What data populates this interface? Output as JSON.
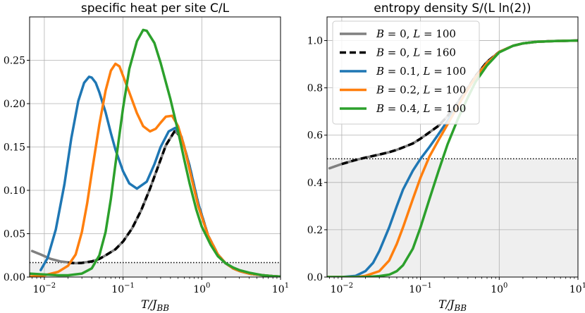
{
  "chart_data": [
    {
      "type": "line",
      "title": "specific heat per site C/L",
      "xlabel": "T/J_BB",
      "ylabel": "",
      "xscale": "log",
      "xlim": [
        0.0065,
        10
      ],
      "ylim": [
        0,
        0.3
      ],
      "grid": true,
      "x_ticks": [
        {
          "value": 0.01,
          "label": "10^-2"
        },
        {
          "value": 0.1,
          "label": "10^-1"
        },
        {
          "value": 1,
          "label": "10^0"
        },
        {
          "value": 10,
          "label": "10^1"
        }
      ],
      "y_ticks": [
        {
          "value": 0.0,
          "label": "0.00"
        },
        {
          "value": 0.05,
          "label": "0.05"
        },
        {
          "value": 0.1,
          "label": "0.10"
        },
        {
          "value": 0.15,
          "label": "0.15"
        },
        {
          "value": 0.2,
          "label": "0.20"
        },
        {
          "value": 0.25,
          "label": "0.25"
        }
      ],
      "reference_line": {
        "y": 0.0167,
        "style": "dotted",
        "shaded_below": true
      },
      "series": [
        {
          "name": "B = 0, L = 100",
          "color": "#808080",
          "dash": "solid",
          "x": [
            0.007,
            0.009,
            0.012,
            0.016,
            0.02,
            0.025,
            0.03,
            0.04,
            0.05,
            0.06,
            0.08,
            0.1,
            0.13,
            0.17,
            0.22,
            0.28,
            0.35,
            0.45,
            0.55,
            0.7,
            0.9,
            1.2,
            1.6,
            2.0,
            2.5,
            3.0,
            4.0,
            6.0,
            8.0,
            10.0
          ],
          "y": [
            0.03,
            0.026,
            0.021,
            0.018,
            0.017,
            0.016,
            0.0165,
            0.018,
            0.021,
            0.025,
            0.032,
            0.041,
            0.056,
            0.077,
            0.102,
            0.128,
            0.152,
            0.168,
            0.162,
            0.128,
            0.085,
            0.048,
            0.026,
            0.016,
            0.01,
            0.007,
            0.004,
            0.002,
            0.001,
            0.0005
          ]
        },
        {
          "name": "B = 0, L = 160",
          "color": "#000000",
          "dash": "dashed",
          "x": [
            0.02,
            0.025,
            0.03,
            0.04,
            0.05,
            0.06,
            0.08,
            0.1,
            0.13,
            0.17,
            0.22,
            0.28,
            0.35,
            0.45,
            0.55,
            0.7,
            0.9,
            1.2,
            1.6,
            2.0,
            2.5,
            3.0,
            4.0,
            6.0,
            8.0,
            10.0
          ],
          "y": [
            0.0165,
            0.016,
            0.0163,
            0.018,
            0.021,
            0.025,
            0.032,
            0.041,
            0.056,
            0.077,
            0.102,
            0.128,
            0.152,
            0.168,
            0.162,
            0.128,
            0.085,
            0.048,
            0.026,
            0.016,
            0.01,
            0.007,
            0.004,
            0.002,
            0.001,
            0.0005
          ]
        },
        {
          "name": "B = 0.1, L = 100",
          "color": "#1f77b4",
          "dash": "solid",
          "x": [
            0.009,
            0.011,
            0.014,
            0.018,
            0.022,
            0.027,
            0.032,
            0.037,
            0.04,
            0.045,
            0.05,
            0.06,
            0.07,
            0.08,
            0.1,
            0.12,
            0.15,
            0.2,
            0.25,
            0.3,
            0.38,
            0.46,
            0.55,
            0.7,
            0.9,
            1.2,
            1.6,
            2.0,
            2.5,
            3.0,
            4.0,
            6.0,
            8.0,
            10.0
          ],
          "y": [
            0.008,
            0.022,
            0.055,
            0.107,
            0.16,
            0.203,
            0.224,
            0.231,
            0.23,
            0.224,
            0.213,
            0.19,
            0.166,
            0.147,
            0.122,
            0.108,
            0.102,
            0.11,
            0.13,
            0.15,
            0.168,
            0.172,
            0.162,
            0.128,
            0.085,
            0.048,
            0.026,
            0.016,
            0.01,
            0.007,
            0.004,
            0.002,
            0.001,
            0.0005
          ]
        },
        {
          "name": "B = 0.2, L = 100",
          "color": "#ff7f0e",
          "dash": "solid",
          "x": [
            0.0065,
            0.01,
            0.015,
            0.02,
            0.025,
            0.03,
            0.035,
            0.04,
            0.05,
            0.06,
            0.07,
            0.08,
            0.09,
            0.1,
            0.12,
            0.15,
            0.18,
            0.22,
            0.26,
            0.3,
            0.35,
            0.42,
            0.5,
            0.6,
            0.75,
            0.9,
            1.2,
            1.6,
            2.0,
            2.5,
            3.0,
            4.0,
            6.0,
            8.0,
            10.0
          ],
          "y": [
            0.0005,
            0.002,
            0.006,
            0.013,
            0.026,
            0.052,
            0.085,
            0.12,
            0.176,
            0.215,
            0.238,
            0.246,
            0.243,
            0.232,
            0.213,
            0.189,
            0.174,
            0.168,
            0.171,
            0.178,
            0.185,
            0.186,
            0.174,
            0.15,
            0.112,
            0.082,
            0.048,
            0.026,
            0.016,
            0.01,
            0.007,
            0.004,
            0.002,
            0.001,
            0.0005
          ]
        },
        {
          "name": "B = 0.4, L = 100",
          "color": "#2ca02c",
          "dash": "solid",
          "x": [
            0.0065,
            0.01,
            0.015,
            0.02,
            0.03,
            0.04,
            0.05,
            0.06,
            0.07,
            0.08,
            0.1,
            0.12,
            0.15,
            0.18,
            0.2,
            0.25,
            0.3,
            0.4,
            0.5,
            0.6,
            0.7,
            0.85,
            1.0,
            1.3,
            1.6,
            2.0,
            2.5,
            3.0,
            4.0,
            6.0,
            8.0,
            10.0
          ],
          "y": [
            0.004,
            0.003,
            0.002,
            0.002,
            0.004,
            0.01,
            0.025,
            0.052,
            0.09,
            0.13,
            0.195,
            0.24,
            0.272,
            0.285,
            0.284,
            0.27,
            0.247,
            0.205,
            0.168,
            0.135,
            0.108,
            0.078,
            0.058,
            0.037,
            0.024,
            0.016,
            0.011,
            0.008,
            0.005,
            0.002,
            0.001,
            0.0005
          ]
        }
      ]
    },
    {
      "type": "line",
      "title": "entropy density S/(L ln(2))",
      "xlabel": "T/J_BB",
      "ylabel": "",
      "xscale": "log",
      "xlim": [
        0.0065,
        10
      ],
      "ylim": [
        0,
        1.1
      ],
      "grid": true,
      "legend_position": "top-left",
      "x_ticks": [
        {
          "value": 0.01,
          "label": "10^-2"
        },
        {
          "value": 0.1,
          "label": "10^-1"
        },
        {
          "value": 1,
          "label": "10^0"
        },
        {
          "value": 10,
          "label": "10^1"
        }
      ],
      "y_ticks": [
        {
          "value": 0.0,
          "label": "0.0"
        },
        {
          "value": 0.2,
          "label": "0.2"
        },
        {
          "value": 0.4,
          "label": "0.4"
        },
        {
          "value": 0.6,
          "label": "0.6"
        },
        {
          "value": 0.8,
          "label": "0.8"
        },
        {
          "value": 1.0,
          "label": "1.0"
        }
      ],
      "reference_line": {
        "y": 0.5,
        "style": "dotted",
        "shaded_below": true
      },
      "series": [
        {
          "name": "B = 0, L = 100",
          "color": "#808080",
          "dash": "solid",
          "x": [
            0.007,
            0.01,
            0.015,
            0.02,
            0.03,
            0.04,
            0.05,
            0.06,
            0.08,
            0.1,
            0.13,
            0.17,
            0.22,
            0.3,
            0.4,
            0.5,
            0.7,
            1.0,
            1.5,
            2.0,
            3.0,
            5.0,
            10.0
          ],
          "y": [
            0.46,
            0.478,
            0.495,
            0.505,
            0.518,
            0.528,
            0.538,
            0.548,
            0.565,
            0.585,
            0.612,
            0.64,
            0.68,
            0.74,
            0.8,
            0.85,
            0.91,
            0.952,
            0.978,
            0.988,
            0.995,
            0.998,
            1.0
          ]
        },
        {
          "name": "B = 0, L = 160",
          "color": "#000000",
          "dash": "dashed",
          "x": [
            0.01,
            0.015,
            0.02,
            0.03,
            0.04,
            0.05,
            0.06,
            0.08,
            0.1,
            0.13,
            0.17,
            0.22,
            0.3,
            0.4,
            0.5,
            0.7,
            1.0,
            1.5,
            2.0,
            3.0,
            5.0,
            10.0
          ],
          "y": [
            0.478,
            0.495,
            0.505,
            0.518,
            0.528,
            0.538,
            0.548,
            0.565,
            0.585,
            0.612,
            0.64,
            0.68,
            0.74,
            0.8,
            0.85,
            0.91,
            0.952,
            0.978,
            0.988,
            0.995,
            0.998,
            1.0
          ]
        },
        {
          "name": "B = 0.1, L = 100",
          "color": "#1f77b4",
          "dash": "solid",
          "x": [
            0.0065,
            0.01,
            0.015,
            0.02,
            0.025,
            0.03,
            0.04,
            0.05,
            0.06,
            0.08,
            0.1,
            0.13,
            0.17,
            0.22,
            0.3,
            0.4,
            0.5,
            0.7,
            1.0,
            1.5,
            2.0,
            3.0,
            5.0,
            10.0
          ],
          "y": [
            0.0,
            0.0,
            0.005,
            0.025,
            0.06,
            0.11,
            0.21,
            0.3,
            0.37,
            0.45,
            0.5,
            0.55,
            0.605,
            0.66,
            0.73,
            0.795,
            0.845,
            0.905,
            0.952,
            0.978,
            0.988,
            0.995,
            0.998,
            1.0
          ]
        },
        {
          "name": "B = 0.2, L = 100",
          "color": "#ff7f0e",
          "dash": "solid",
          "x": [
            0.0065,
            0.015,
            0.02,
            0.03,
            0.04,
            0.05,
            0.06,
            0.08,
            0.1,
            0.13,
            0.17,
            0.22,
            0.3,
            0.4,
            0.5,
            0.7,
            1.0,
            1.5,
            2.0,
            3.0,
            5.0,
            10.0
          ],
          "y": [
            0.0,
            0.0,
            0.005,
            0.025,
            0.07,
            0.14,
            0.21,
            0.33,
            0.42,
            0.51,
            0.58,
            0.645,
            0.725,
            0.795,
            0.845,
            0.905,
            0.952,
            0.978,
            0.988,
            0.995,
            0.998,
            1.0
          ]
        },
        {
          "name": "B = 0.4, L = 100",
          "color": "#2ca02c",
          "dash": "solid",
          "x": [
            0.0065,
            0.02,
            0.03,
            0.04,
            0.05,
            0.06,
            0.08,
            0.1,
            0.13,
            0.17,
            0.22,
            0.3,
            0.4,
            0.5,
            0.7,
            1.0,
            1.5,
            2.0,
            3.0,
            5.0,
            10.0
          ],
          "y": [
            0.0,
            0.0,
            0.004,
            0.01,
            0.025,
            0.05,
            0.12,
            0.21,
            0.33,
            0.45,
            0.56,
            0.67,
            0.76,
            0.825,
            0.895,
            0.95,
            0.978,
            0.988,
            0.995,
            0.998,
            1.0
          ]
        }
      ]
    }
  ]
}
